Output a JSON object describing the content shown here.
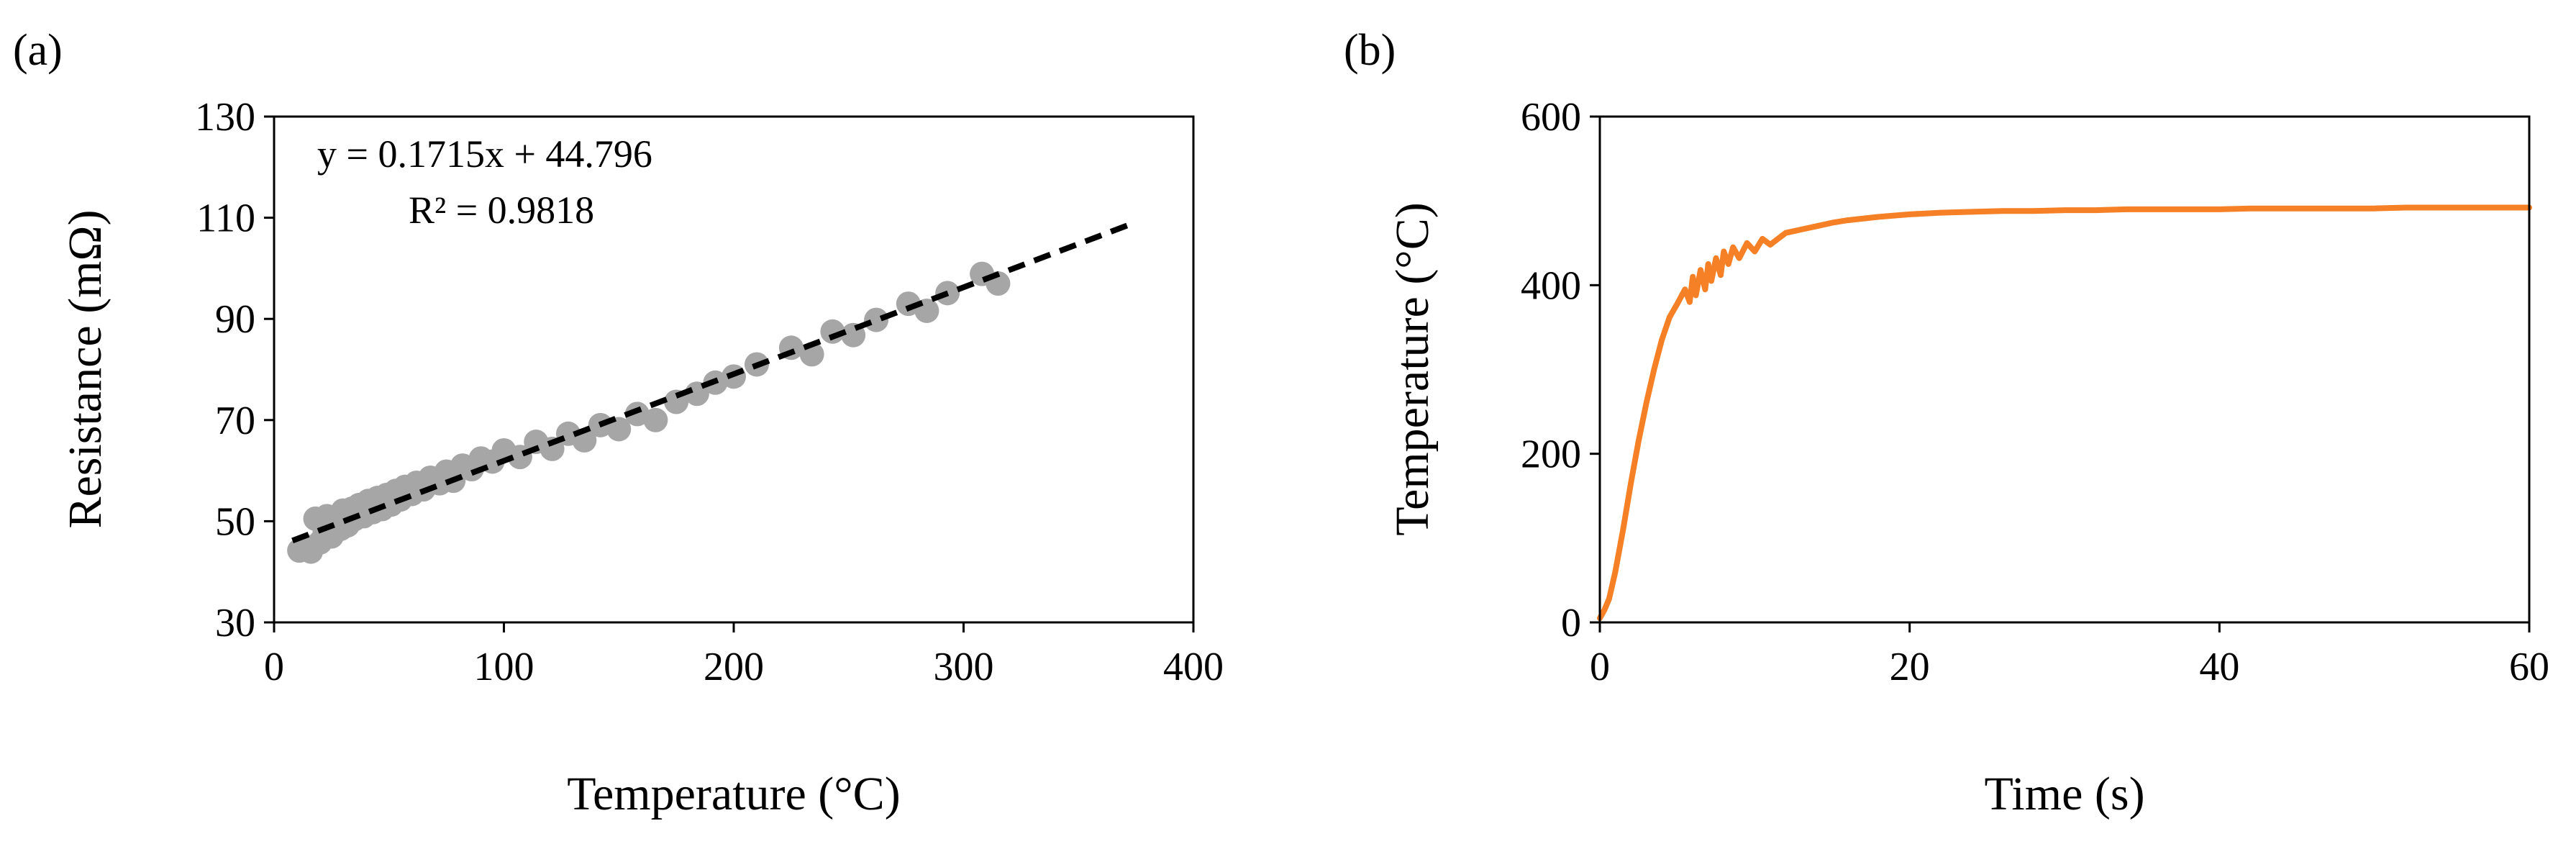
{
  "colors": {
    "scatter_points": "#a6a6a6",
    "trendline": "#000000",
    "time_series": "#f58025",
    "axes": "#000000"
  },
  "chart_data": [
    {
      "id": "a",
      "panel_label": "(a)",
      "type": "scatter",
      "title": "",
      "xlabel": "Temperature (°C)",
      "ylabel": "Resistance (mΩ)",
      "xlim": [
        0,
        400
      ],
      "ylim": [
        30,
        130
      ],
      "xticks": [
        0,
        100,
        200,
        300,
        400
      ],
      "yticks": [
        30,
        50,
        70,
        90,
        110,
        130
      ],
      "grid": false,
      "legend": "none",
      "series": [
        {
          "name": "Measured resistance",
          "x": [
            11,
            14,
            16,
            18,
            20,
            22,
            23,
            25,
            27,
            29,
            30,
            32,
            34,
            35,
            37,
            39,
            41,
            43,
            45,
            47,
            49,
            51,
            53,
            55,
            57,
            60,
            62,
            65,
            68,
            72,
            75,
            78,
            82,
            86,
            90,
            95,
            100,
            107,
            114,
            121,
            128,
            135,
            142,
            150,
            158,
            166,
            175,
            184,
            192,
            200,
            210,
            225,
            234,
            243,
            252,
            262,
            276,
            284,
            293,
            308,
            315
          ],
          "y": [
            44.2,
            45.0,
            44.0,
            50.5,
            45.8,
            47.6,
            51.0,
            47.0,
            50.5,
            48.5,
            52.1,
            49.2,
            52.5,
            50.4,
            53.2,
            51.0,
            54.0,
            51.8,
            54.6,
            52.4,
            55.2,
            53.3,
            56.0,
            54.3,
            56.8,
            55.4,
            57.6,
            56.3,
            58.6,
            57.5,
            59.8,
            58.0,
            61.0,
            60.3,
            62.4,
            61.8,
            64.0,
            62.7,
            65.7,
            64.3,
            67.3,
            66.0,
            69.0,
            68.2,
            71.2,
            70.0,
            73.6,
            75.2,
            77.4,
            78.6,
            81.0,
            84.3,
            83.0,
            87.5,
            86.8,
            89.8,
            93.0,
            91.6,
            95.1,
            98.9,
            97.0
          ]
        },
        {
          "name": "Linear fit",
          "type": "trendline",
          "slope": 0.1715,
          "intercept": 44.796,
          "x_range": [
            8,
            372
          ]
        }
      ],
      "annotations": {
        "equation": "y = 0.1715x + 44.796",
        "r2": "R² = 0.9818"
      }
    },
    {
      "id": "b",
      "panel_label": "(b)",
      "type": "line",
      "title": "",
      "xlabel": "Time (s)",
      "ylabel": "Temperature (°C)",
      "xlim": [
        0,
        60
      ],
      "ylim": [
        0,
        600
      ],
      "xticks": [
        0,
        20,
        40,
        60
      ],
      "yticks": [
        0,
        200,
        400,
        600
      ],
      "grid": false,
      "legend": "none",
      "series": [
        {
          "name": "Temperature",
          "x": [
            0,
            0.3,
            0.6,
            1.0,
            1.5,
            2.0,
            2.5,
            3.0,
            3.5,
            4.0,
            4.5,
            5.0,
            5.5,
            5.8,
            6.0,
            6.2,
            6.5,
            6.8,
            7.0,
            7.2,
            7.5,
            7.8,
            8.0,
            8.3,
            8.6,
            9.0,
            9.5,
            10.0,
            10.5,
            11.0,
            12.0,
            13.0,
            14.0,
            15.0,
            16.0,
            18.0,
            20.0,
            22.0,
            24.0,
            26.0,
            28.0,
            30.0,
            32.0,
            34.0,
            36.0,
            38.0,
            40.0,
            42.0,
            44.0,
            46.0,
            48.0,
            50.0,
            52.0,
            54.0,
            56.0,
            58.0,
            60.0
          ],
          "y": [
            5,
            15,
            28,
            60,
            110,
            165,
            215,
            260,
            300,
            335,
            362,
            378,
            395,
            380,
            410,
            388,
            418,
            395,
            425,
            405,
            432,
            412,
            440,
            425,
            445,
            432,
            450,
            440,
            455,
            448,
            462,
            466,
            470,
            474,
            477,
            481,
            484,
            486,
            487,
            488,
            488,
            489,
            489,
            490,
            490,
            490,
            490,
            491,
            491,
            491,
            491,
            491,
            492,
            492,
            492,
            492,
            492
          ]
        }
      ]
    }
  ]
}
